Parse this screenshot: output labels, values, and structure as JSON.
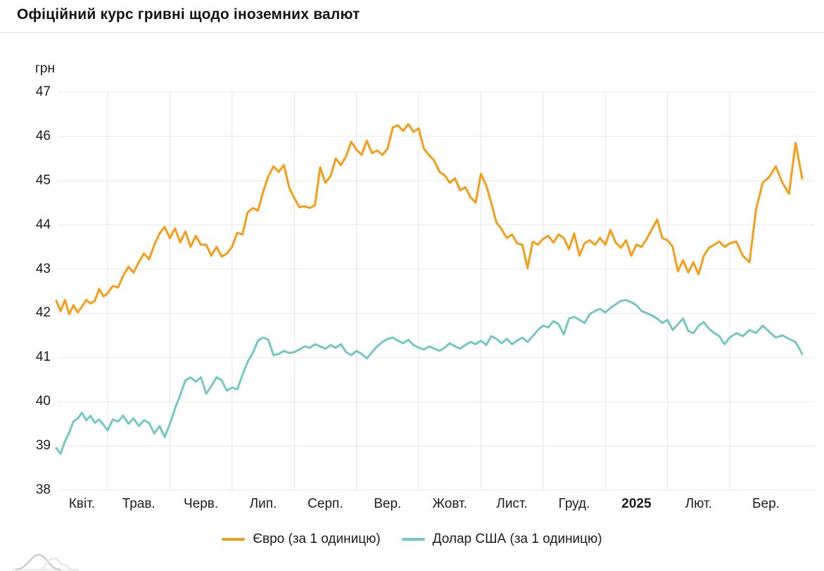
{
  "page": {
    "title": "Офіційний курс гривні щодо іноземних валют"
  },
  "chart_data": {
    "type": "line",
    "title": "Офіційний курс гривні щодо іноземних валют",
    "ylabel": "грн",
    "xlabel": "",
    "grid": true,
    "legend_position": "bottom",
    "y_axis": {
      "unit_label": "грн",
      "min": 38,
      "max": 47,
      "ticks": [
        38,
        39,
        40,
        41,
        42,
        43,
        44,
        45,
        46,
        47
      ]
    },
    "x_axis": {
      "labels": [
        "Квіт.",
        "Трав.",
        "Черв.",
        "Лип.",
        "Серп.",
        "Вер.",
        "Жовт.",
        "Лист.",
        "Груд.",
        "2025",
        "Лют.",
        "Бер."
      ],
      "bold_label": "2025",
      "points_per_month": 12
    },
    "series": [
      {
        "id": "euro",
        "name": "Євро (за 1 одиницю)",
        "color": "#F89C15",
        "values": [
          42.28,
          42.05,
          42.3,
          41.98,
          42.18,
          42.02,
          42.15,
          42.3,
          42.22,
          42.28,
          42.55,
          42.38,
          42.45,
          42.62,
          42.58,
          42.85,
          43.05,
          42.92,
          43.15,
          43.35,
          43.22,
          43.55,
          43.8,
          43.95,
          43.7,
          43.92,
          43.6,
          43.85,
          43.5,
          43.75,
          43.55,
          43.55,
          43.3,
          43.5,
          43.28,
          43.35,
          43.5,
          43.82,
          43.78,
          44.28,
          44.38,
          44.32,
          44.75,
          45.1,
          45.32,
          45.2,
          45.35,
          44.85,
          44.6,
          44.4,
          44.42,
          44.38,
          44.45,
          45.3,
          44.95,
          45.1,
          45.5,
          45.35,
          45.55,
          45.88,
          45.7,
          45.58,
          45.9,
          45.62,
          45.68,
          45.58,
          45.72,
          46.2,
          46.25,
          46.12,
          46.28,
          46.1,
          46.18,
          45.72,
          45.58,
          45.45,
          45.2,
          45.12,
          44.95,
          45.05,
          44.78,
          44.85,
          44.62,
          44.5,
          45.15,
          44.9,
          44.5,
          44.05,
          43.9,
          43.7,
          43.78,
          43.58,
          43.55,
          43.02,
          43.62,
          43.55,
          43.68,
          43.75,
          43.6,
          43.78,
          43.7,
          43.45,
          43.8,
          43.3,
          43.58,
          43.65,
          43.55,
          43.7,
          43.55,
          43.88,
          43.6,
          43.48,
          43.65,
          43.3,
          43.55,
          43.5,
          43.68,
          43.9,
          44.12,
          43.7,
          43.65,
          43.5,
          42.95,
          43.2,
          42.92,
          43.15,
          42.88,
          43.3,
          43.48,
          43.55,
          43.62,
          43.5,
          43.58,
          43.62,
          43.3,
          43.15,
          44.35,
          44.95,
          45.08,
          45.32,
          44.95,
          44.7,
          45.85,
          45.05
        ]
      },
      {
        "id": "usd",
        "name": "Долар США (за 1 одиницю)",
        "color": "#74C8C3",
        "values": [
          38.95,
          38.82,
          39.1,
          39.3,
          39.55,
          39.62,
          39.75,
          39.58,
          39.68,
          39.52,
          39.6,
          39.48,
          39.35,
          39.6,
          39.55,
          39.68,
          39.5,
          39.62,
          39.45,
          39.58,
          39.52,
          39.28,
          39.45,
          39.2,
          39.5,
          39.85,
          40.15,
          40.48,
          40.55,
          40.45,
          40.55,
          40.18,
          40.35,
          40.55,
          40.48,
          40.25,
          40.32,
          40.28,
          40.6,
          40.9,
          41.1,
          41.38,
          41.45,
          41.4,
          41.05,
          41.08,
          41.15,
          41.1,
          41.12,
          41.18,
          41.25,
          41.22,
          41.3,
          41.25,
          41.2,
          41.28,
          41.22,
          41.3,
          41.12,
          41.05,
          41.15,
          41.08,
          40.98,
          41.12,
          41.25,
          41.35,
          41.42,
          41.45,
          41.38,
          41.32,
          41.4,
          41.28,
          41.22,
          41.18,
          41.25,
          41.2,
          41.15,
          41.22,
          41.32,
          41.25,
          41.2,
          41.28,
          41.35,
          41.3,
          41.38,
          41.28,
          41.48,
          41.42,
          41.32,
          41.42,
          41.3,
          41.38,
          41.45,
          41.35,
          41.48,
          41.62,
          41.72,
          41.68,
          41.82,
          41.75,
          41.52,
          41.88,
          41.92,
          41.85,
          41.78,
          41.98,
          42.05,
          42.1,
          42.02,
          42.12,
          42.2,
          42.28,
          42.3,
          42.25,
          42.18,
          42.05,
          42.0,
          41.95,
          41.88,
          41.78,
          41.85,
          41.62,
          41.75,
          41.88,
          41.6,
          41.55,
          41.72,
          41.8,
          41.65,
          41.55,
          41.48,
          41.3,
          41.45,
          41.55,
          41.48,
          41.62,
          41.55,
          41.72,
          41.58,
          41.45,
          41.5,
          41.42,
          41.35,
          41.08
        ]
      }
    ],
    "colors": {
      "grid_horizontal": "#e8e8e8",
      "grid_vertical": "#e4e4e4",
      "text": "#1c1c1c",
      "divider": "#e1e1e1",
      "decoration_gray_dark": "#cccccc",
      "decoration_gray_light": "#e6e6e6"
    }
  },
  "footer": {
    "decoration_icon": "mini-chart-waves-icon"
  }
}
